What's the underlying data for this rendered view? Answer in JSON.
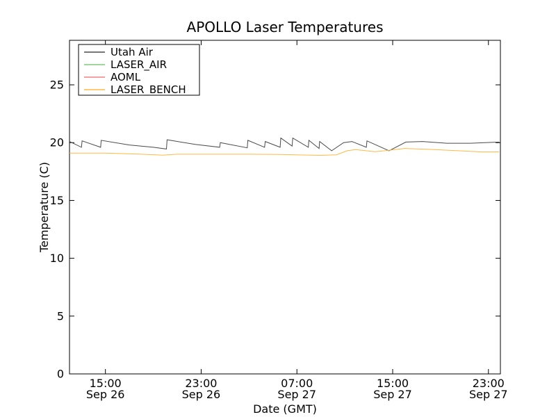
{
  "figure": {
    "background": "#ffffff",
    "axes_edge_color": "#000000"
  },
  "chart_data": {
    "type": "line",
    "title": "APOLLO Laser Temperatures",
    "xlabel": "Date (GMT)",
    "ylabel": "Temperature (C)",
    "x_axis_note": "x values are hours since Sep 26 12:00 GMT",
    "xlim": [
      0,
      36
    ],
    "ylim": [
      0,
      28.85
    ],
    "grid": false,
    "yticks": [
      0,
      5,
      10,
      15,
      20,
      25
    ],
    "xticks": [
      {
        "pos": 3,
        "time": "15:00",
        "date": "Sep 26"
      },
      {
        "pos": 11,
        "time": "23:00",
        "date": "Sep 26"
      },
      {
        "pos": 19,
        "time": "07:00",
        "date": "Sep 27"
      },
      {
        "pos": 27,
        "time": "15:00",
        "date": "Sep 27"
      },
      {
        "pos": 35,
        "time": "23:00",
        "date": "Sep 27"
      }
    ],
    "legend": {
      "position": "upper-left",
      "entries": [
        "Utah Air",
        "LASER_AIR",
        "AOML",
        "LASER_BENCH"
      ]
    },
    "series": [
      {
        "name": "Utah Air",
        "color": "#4a4a4a",
        "points": [
          [
            0,
            20.1
          ],
          [
            1.0,
            19.6
          ],
          [
            1.05,
            20.15
          ],
          [
            2.6,
            19.6
          ],
          [
            2.65,
            20.2
          ],
          [
            5.0,
            19.8
          ],
          [
            7.0,
            19.6
          ],
          [
            8.1,
            19.45
          ],
          [
            8.15,
            20.25
          ],
          [
            10.5,
            19.85
          ],
          [
            12.55,
            19.6
          ],
          [
            12.6,
            20.0
          ],
          [
            14.85,
            19.55
          ],
          [
            14.9,
            20.2
          ],
          [
            16.3,
            19.6
          ],
          [
            16.35,
            20.1
          ],
          [
            17.6,
            19.6
          ],
          [
            17.65,
            20.4
          ],
          [
            18.6,
            19.7
          ],
          [
            18.65,
            20.4
          ],
          [
            19.95,
            19.6
          ],
          [
            20.0,
            20.2
          ],
          [
            20.85,
            19.5
          ],
          [
            20.9,
            20.1
          ],
          [
            21.9,
            19.3
          ],
          [
            22.9,
            20.0
          ],
          [
            23.6,
            20.1
          ],
          [
            24.8,
            19.6
          ],
          [
            24.85,
            20.15
          ],
          [
            26.7,
            19.3
          ],
          [
            28.1,
            20.05
          ],
          [
            29.5,
            20.1
          ],
          [
            31.5,
            19.95
          ],
          [
            33.5,
            19.95
          ],
          [
            35.9,
            20.05
          ]
        ]
      },
      {
        "name": "LASER_AIR",
        "color": "#7ec87e",
        "points": []
      },
      {
        "name": "AOML",
        "color": "#f28080",
        "points": []
      },
      {
        "name": "LASER_BENCH",
        "color": "#ffb845",
        "points": [
          [
            0,
            19.1
          ],
          [
            3.0,
            19.1
          ],
          [
            6.0,
            19.0
          ],
          [
            7.8,
            18.92
          ],
          [
            9.0,
            19.0
          ],
          [
            12.0,
            19.0
          ],
          [
            15.0,
            19.0
          ],
          [
            17.5,
            18.98
          ],
          [
            19.5,
            18.93
          ],
          [
            21.0,
            18.9
          ],
          [
            22.3,
            18.95
          ],
          [
            23.2,
            19.3
          ],
          [
            23.9,
            19.4
          ],
          [
            25.5,
            19.22
          ],
          [
            26.5,
            19.32
          ],
          [
            28.0,
            19.5
          ],
          [
            30.0,
            19.42
          ],
          [
            32.5,
            19.3
          ],
          [
            34.5,
            19.2
          ],
          [
            35.9,
            19.2
          ]
        ]
      }
    ]
  }
}
